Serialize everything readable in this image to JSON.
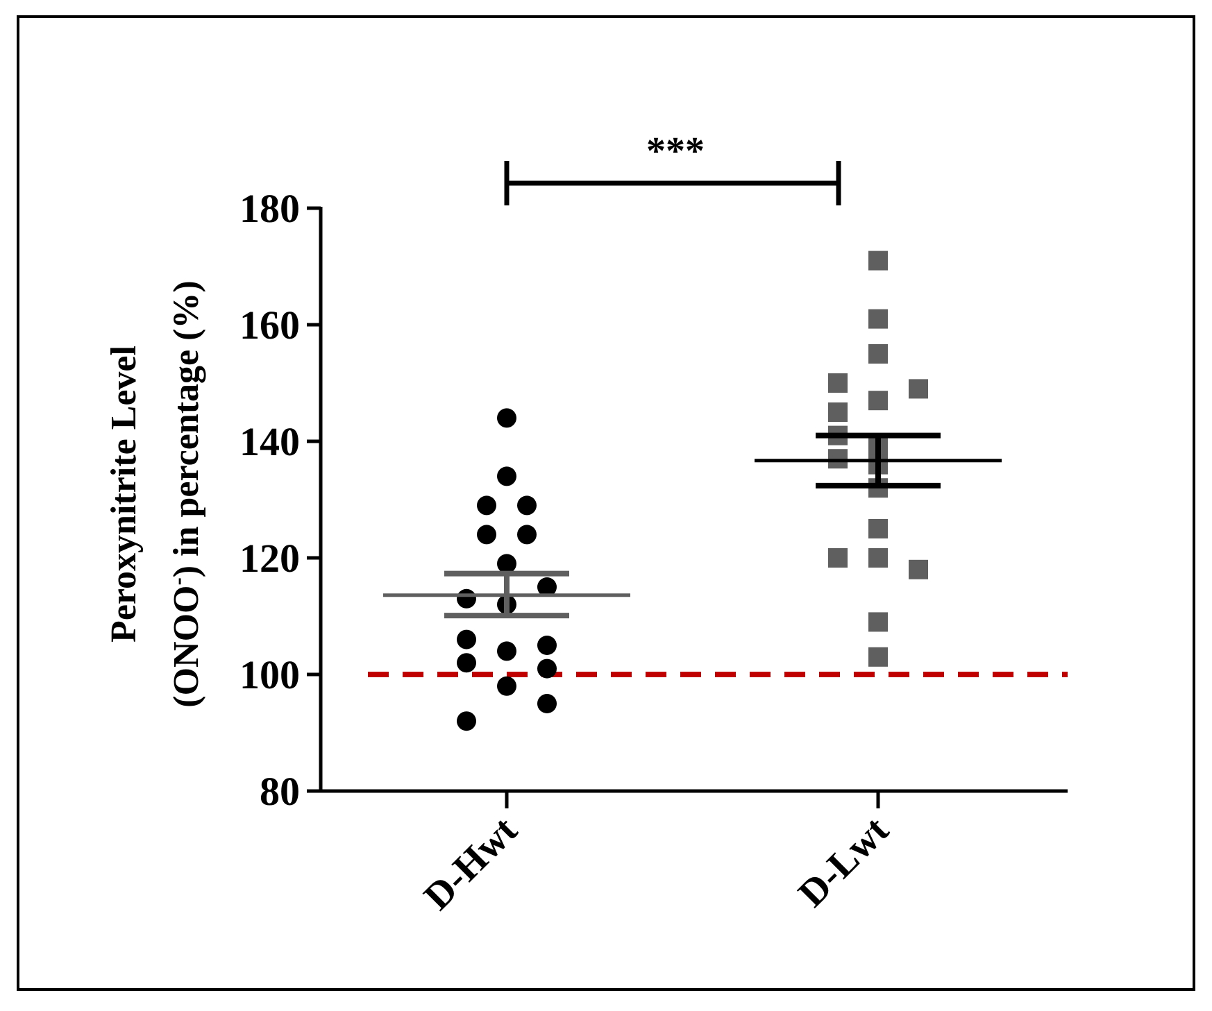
{
  "chart_data": {
    "type": "scatter",
    "subtype": "dot-plot with mean and SEM",
    "ylabel_line1": "Peroxynitrite Level",
    "ylabel_line2_pre": "(ONOO",
    "ylabel_superscript": "-",
    "ylabel_line2_post": ") in percentage (%)",
    "ylim": [
      80,
      180
    ],
    "yticks": [
      80,
      100,
      120,
      140,
      160,
      180
    ],
    "categories": [
      "D-Hwt",
      "D-Lwt"
    ],
    "reference_line": {
      "y": 100,
      "style": "dashed",
      "color": "#c00000"
    },
    "significance": {
      "label": "***",
      "between": [
        "D-Hwt",
        "D-Lwt"
      ]
    },
    "series": [
      {
        "name": "D-Hwt",
        "marker": "circle",
        "color": "#000000",
        "summary_color": "#5f5f5f",
        "mean": 113.6,
        "sem_low": 110.1,
        "sem_high": 117.3,
        "points": [
          {
            "x": 0,
            "y": 144
          },
          {
            "x": 0,
            "y": 134
          },
          {
            "x": -1,
            "y": 129
          },
          {
            "x": 1,
            "y": 129
          },
          {
            "x": -1,
            "y": 124
          },
          {
            "x": 1,
            "y": 124
          },
          {
            "x": 0,
            "y": 119
          },
          {
            "x": 2,
            "y": 115
          },
          {
            "x": -2,
            "y": 113
          },
          {
            "x": 0,
            "y": 112
          },
          {
            "x": -2,
            "y": 106
          },
          {
            "x": 2,
            "y": 105
          },
          {
            "x": 0,
            "y": 104
          },
          {
            "x": -2,
            "y": 102
          },
          {
            "x": 2,
            "y": 101
          },
          {
            "x": 0,
            "y": 98
          },
          {
            "x": 2,
            "y": 95
          },
          {
            "x": -2,
            "y": 92
          }
        ]
      },
      {
        "name": "D-Lwt",
        "marker": "square",
        "color": "#5f5f5f",
        "summary_color": "#000000",
        "mean": 136.7,
        "sem_low": 132.4,
        "sem_high": 141.0,
        "points": [
          {
            "x": 0,
            "y": 171
          },
          {
            "x": 0,
            "y": 161
          },
          {
            "x": 0,
            "y": 155
          },
          {
            "x": -2,
            "y": 150
          },
          {
            "x": 2,
            "y": 149
          },
          {
            "x": 0,
            "y": 147
          },
          {
            "x": -2,
            "y": 145
          },
          {
            "x": -2,
            "y": 141
          },
          {
            "x": -2,
            "y": 137
          },
          {
            "x": 0,
            "y": 139
          },
          {
            "x": 0,
            "y": 136
          },
          {
            "x": 0,
            "y": 132
          },
          {
            "x": 0,
            "y": 125
          },
          {
            "x": -2,
            "y": 120
          },
          {
            "x": 0,
            "y": 120
          },
          {
            "x": 2,
            "y": 118
          },
          {
            "x": 0,
            "y": 109
          },
          {
            "x": 0,
            "y": 103
          }
        ]
      }
    ]
  }
}
